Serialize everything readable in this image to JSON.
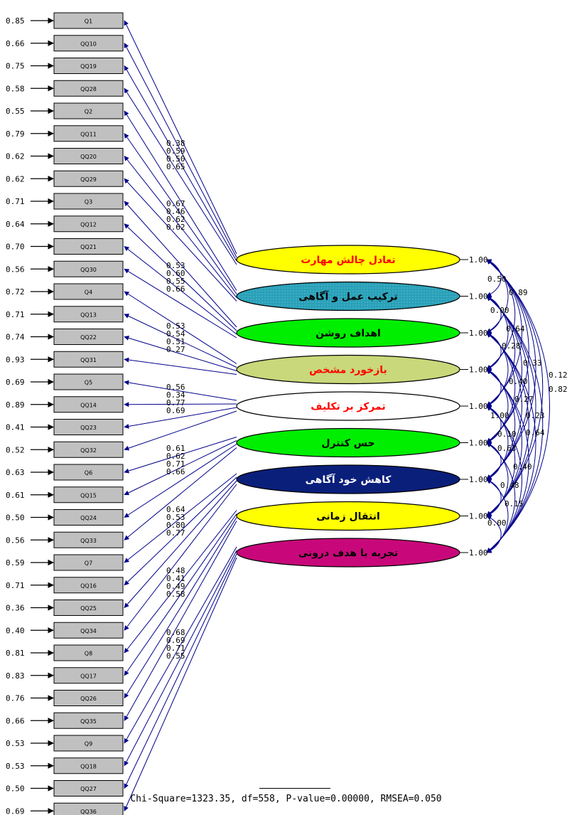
{
  "indicators": [
    {
      "name": "Q1",
      "error": "0.85"
    },
    {
      "name": "QQ10",
      "error": "0.66"
    },
    {
      "name": "QQ19",
      "error": "0.75"
    },
    {
      "name": "QQ28",
      "error": "0.58"
    },
    {
      "name": "Q2",
      "error": "0.55"
    },
    {
      "name": "QQ11",
      "error": "0.79"
    },
    {
      "name": "QQ20",
      "error": "0.62"
    },
    {
      "name": "QQ29",
      "error": "0.62"
    },
    {
      "name": "Q3",
      "error": "0.71"
    },
    {
      "name": "QQ12",
      "error": "0.64"
    },
    {
      "name": "QQ21",
      "error": "0.70"
    },
    {
      "name": "QQ30",
      "error": "0.56"
    },
    {
      "name": "Q4",
      "error": "0.72"
    },
    {
      "name": "QQ13",
      "error": "0.71"
    },
    {
      "name": "QQ22",
      "error": "0.74"
    },
    {
      "name": "QQ31",
      "error": "0.93"
    },
    {
      "name": "Q5",
      "error": "0.69"
    },
    {
      "name": "QQ14",
      "error": "0.89"
    },
    {
      "name": "QQ23",
      "error": "0.41"
    },
    {
      "name": "QQ32",
      "error": "0.52"
    },
    {
      "name": "Q6",
      "error": "0.63"
    },
    {
      "name": "QQ15",
      "error": "0.61"
    },
    {
      "name": "QQ24",
      "error": "0.50"
    },
    {
      "name": "QQ33",
      "error": "0.56"
    },
    {
      "name": "Q7",
      "error": "0.59"
    },
    {
      "name": "QQ16",
      "error": "0.71"
    },
    {
      "name": "QQ25",
      "error": "0.36"
    },
    {
      "name": "QQ34",
      "error": "0.40"
    },
    {
      "name": "Q8",
      "error": "0.81"
    },
    {
      "name": "QQ17",
      "error": "0.83"
    },
    {
      "name": "QQ26",
      "error": "0.76"
    },
    {
      "name": "QQ35",
      "error": "0.66"
    },
    {
      "name": "Q9",
      "error": "0.53"
    },
    {
      "name": "QQ18",
      "error": "0.53"
    },
    {
      "name": "QQ27",
      "error": "0.50"
    },
    {
      "name": "QQ36",
      "error": "0.69"
    }
  ],
  "factors": [
    {
      "label": "تعادل چالش مهارت",
      "variance": "1.00",
      "fill": "#ffff00",
      "text_color": "#ff0000",
      "loadings": [
        "0.38",
        "0.59",
        "0.50",
        "0.65"
      ]
    },
    {
      "label": "ترکیب عمل و آگاهی",
      "variance": "1.00",
      "fill": "#2aa0b8",
      "text_color": "#000000",
      "loadings": [
        "0.67",
        "0.46",
        "0.62",
        "0.62"
      ]
    },
    {
      "label": "اهداف روشن",
      "variance": "1.00",
      "fill": "#00ee00",
      "text_color": "#000000",
      "loadings": [
        "0.53",
        "0.60",
        "0.55",
        "0.66"
      ]
    },
    {
      "label": "بازخورد مشخص",
      "variance": "1.00",
      "fill": "#c8d87a",
      "text_color": "#ff0000",
      "loadings": [
        "0.53",
        "0.54",
        "0.51",
        "0.27"
      ]
    },
    {
      "label": "تمرکز بر تکلیف",
      "variance": "1.00",
      "fill": "#ffffff",
      "text_color": "#ff0000",
      "loadings": [
        "0.56",
        "0.34",
        "0.77",
        "0.69"
      ]
    },
    {
      "label": "حس کنترل",
      "variance": "1.00",
      "fill": "#00ee00",
      "text_color": "#000000",
      "loadings": [
        "0.61",
        "0.62",
        "0.71",
        "0.66"
      ]
    },
    {
      "label": "کاهش خود آگاهی",
      "variance": "1.00",
      "fill": "#0a1f7a",
      "text_color": "#ffffff",
      "loadings": [
        "0.64",
        "0.53",
        "0.80",
        "0.77"
      ]
    },
    {
      "label": "انتقال زمانی",
      "variance": "1.00",
      "fill": "#ffff00",
      "text_color": "#000000",
      "loadings": [
        "0.48",
        "0.41",
        "0.49",
        "0.58"
      ]
    },
    {
      "label": "تجربه با هدف درونی",
      "variance": "1.00",
      "fill": "#c8087a",
      "text_color": "#000000",
      "loadings": [
        "0.68",
        "0.69",
        "0.71",
        "0.55"
      ]
    }
  ],
  "covariance_labels": [
    "0.50",
    "0.89",
    "0.00",
    "0.64",
    "0.28",
    "0.33",
    "0.12",
    "0.82",
    "0.27",
    "0.23",
    "0.64",
    "0.63",
    "0.40",
    "0.48",
    "0.15",
    "0.00",
    "1.00",
    "0.40",
    "0.10"
  ],
  "colors": {
    "indicator_fill": "#c0c0c0",
    "arrow": "#00008b",
    "text": "#000000"
  },
  "fit_statistics": "Chi-Square=1323.35, df=558, P-value=0.00000, RMSEA=0.050"
}
